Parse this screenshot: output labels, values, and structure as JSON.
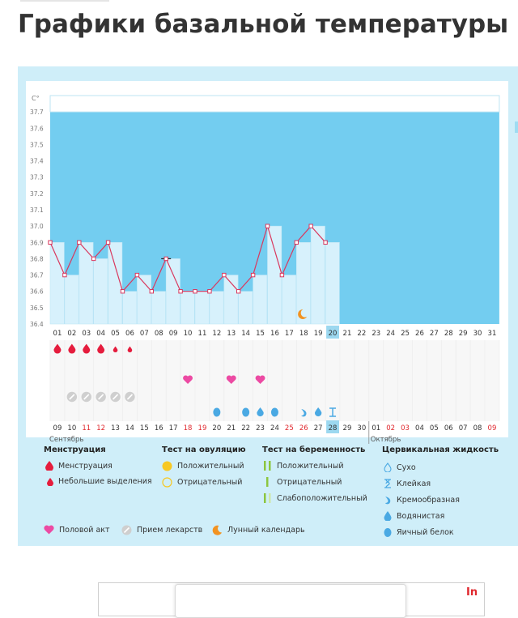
{
  "page_title": "Графики базальной температуры",
  "chart_data": {
    "type": "line",
    "title": "",
    "ylabel": "C°",
    "ylim": [
      36.4,
      37.8
    ],
    "y_ticks": [
      "36.4",
      "36.5",
      "36.6",
      "36.7",
      "36.8",
      "36.9",
      "37.0",
      "37.1",
      "37.2",
      "37.3",
      "37.4",
      "37.5",
      "37.6",
      "37.7"
    ],
    "x_top": [
      "01",
      "02",
      "03",
      "04",
      "05",
      "06",
      "07",
      "08",
      "09",
      "10",
      "11",
      "12",
      "13",
      "14",
      "15",
      "16",
      "17",
      "18",
      "19",
      "20",
      "21",
      "22",
      "23",
      "24",
      "25",
      "26",
      "27",
      "28",
      "29",
      "30",
      "31"
    ],
    "current_day_index": 19,
    "temperatures": [
      36.9,
      36.7,
      36.9,
      36.8,
      36.9,
      36.6,
      36.7,
      36.6,
      36.8,
      36.6,
      36.6,
      36.6,
      36.7,
      36.6,
      36.7,
      37.0,
      36.7,
      36.9,
      37.0,
      36.9
    ],
    "marked_day_index": 8,
    "lunar_day_index": 17,
    "menstruation_heavy_days": [
      0,
      1,
      2,
      3
    ],
    "menstruation_light_days": [
      4,
      5
    ],
    "intercourse_days": [
      9,
      12,
      14
    ],
    "medication_days": [
      1,
      2,
      3,
      4,
      5
    ],
    "cervical": [
      {
        "day": 11,
        "type": "egg_white"
      },
      {
        "day": 13,
        "type": "egg_white"
      },
      {
        "day": 14,
        "type": "watery"
      },
      {
        "day": 15,
        "type": "egg_white"
      },
      {
        "day": 17,
        "type": "creamy"
      },
      {
        "day": 18,
        "type": "watery"
      },
      {
        "day": 19,
        "type": "sticky"
      }
    ],
    "x_bottom": [
      {
        "label": "09",
        "red": false
      },
      {
        "label": "10",
        "red": false
      },
      {
        "label": "11",
        "red": true
      },
      {
        "label": "12",
        "red": true
      },
      {
        "label": "13",
        "red": false
      },
      {
        "label": "14",
        "red": false
      },
      {
        "label": "15",
        "red": false
      },
      {
        "label": "16",
        "red": false
      },
      {
        "label": "17",
        "red": false
      },
      {
        "label": "18",
        "red": true
      },
      {
        "label": "19",
        "red": true
      },
      {
        "label": "20",
        "red": false
      },
      {
        "label": "21",
        "red": false
      },
      {
        "label": "22",
        "red": false
      },
      {
        "label": "23",
        "red": false
      },
      {
        "label": "24",
        "red": false
      },
      {
        "label": "25",
        "red": true
      },
      {
        "label": "26",
        "red": true
      },
      {
        "label": "27",
        "red": false
      },
      {
        "label": "28",
        "red": false
      },
      {
        "label": "29",
        "red": false
      },
      {
        "label": "30",
        "red": false
      },
      {
        "label": "01",
        "red": false
      },
      {
        "label": "02",
        "red": true
      },
      {
        "label": "03",
        "red": true
      },
      {
        "label": "04",
        "red": false
      },
      {
        "label": "05",
        "red": false
      },
      {
        "label": "06",
        "red": false
      },
      {
        "label": "07",
        "red": false
      },
      {
        "label": "08",
        "red": false
      },
      {
        "label": "09",
        "red": true
      }
    ],
    "month_start": "Сентябрь",
    "month_next": "Октябрь",
    "month_next_index": 22
  },
  "legend": {
    "menstruation": {
      "title": "Менструация",
      "items": [
        "Менструация",
        "Небольшие выделения"
      ]
    },
    "ovulation_test": {
      "title": "Тест на овуляцию",
      "items": [
        "Положительный",
        "Отрицательный"
      ]
    },
    "pregnancy_test": {
      "title": "Тест на беременность",
      "items": [
        "Положительный",
        "Отрицательный",
        "Слабоположительный"
      ]
    },
    "cervical": {
      "title": "Цервикальная жидкость",
      "items": [
        "Сухо",
        "Клейкая",
        "Кремообразная",
        "Водянистая",
        "Яичный белок"
      ]
    },
    "bottom": {
      "intercourse": "Половой акт",
      "medication": "Прием лекарств",
      "lunar": "Лунный календарь"
    }
  },
  "footer_badge": "In",
  "colors": {
    "sky": "#73cdf0",
    "bar": "#d7f1fc",
    "line": "#d9385e",
    "blood": "#e51c3d",
    "heart": "#ec4aa3",
    "drop": "#4aa9e3",
    "moon": "#f29322",
    "ovu_yellow": "#f7c823",
    "preg_green": "#8cc63f"
  }
}
